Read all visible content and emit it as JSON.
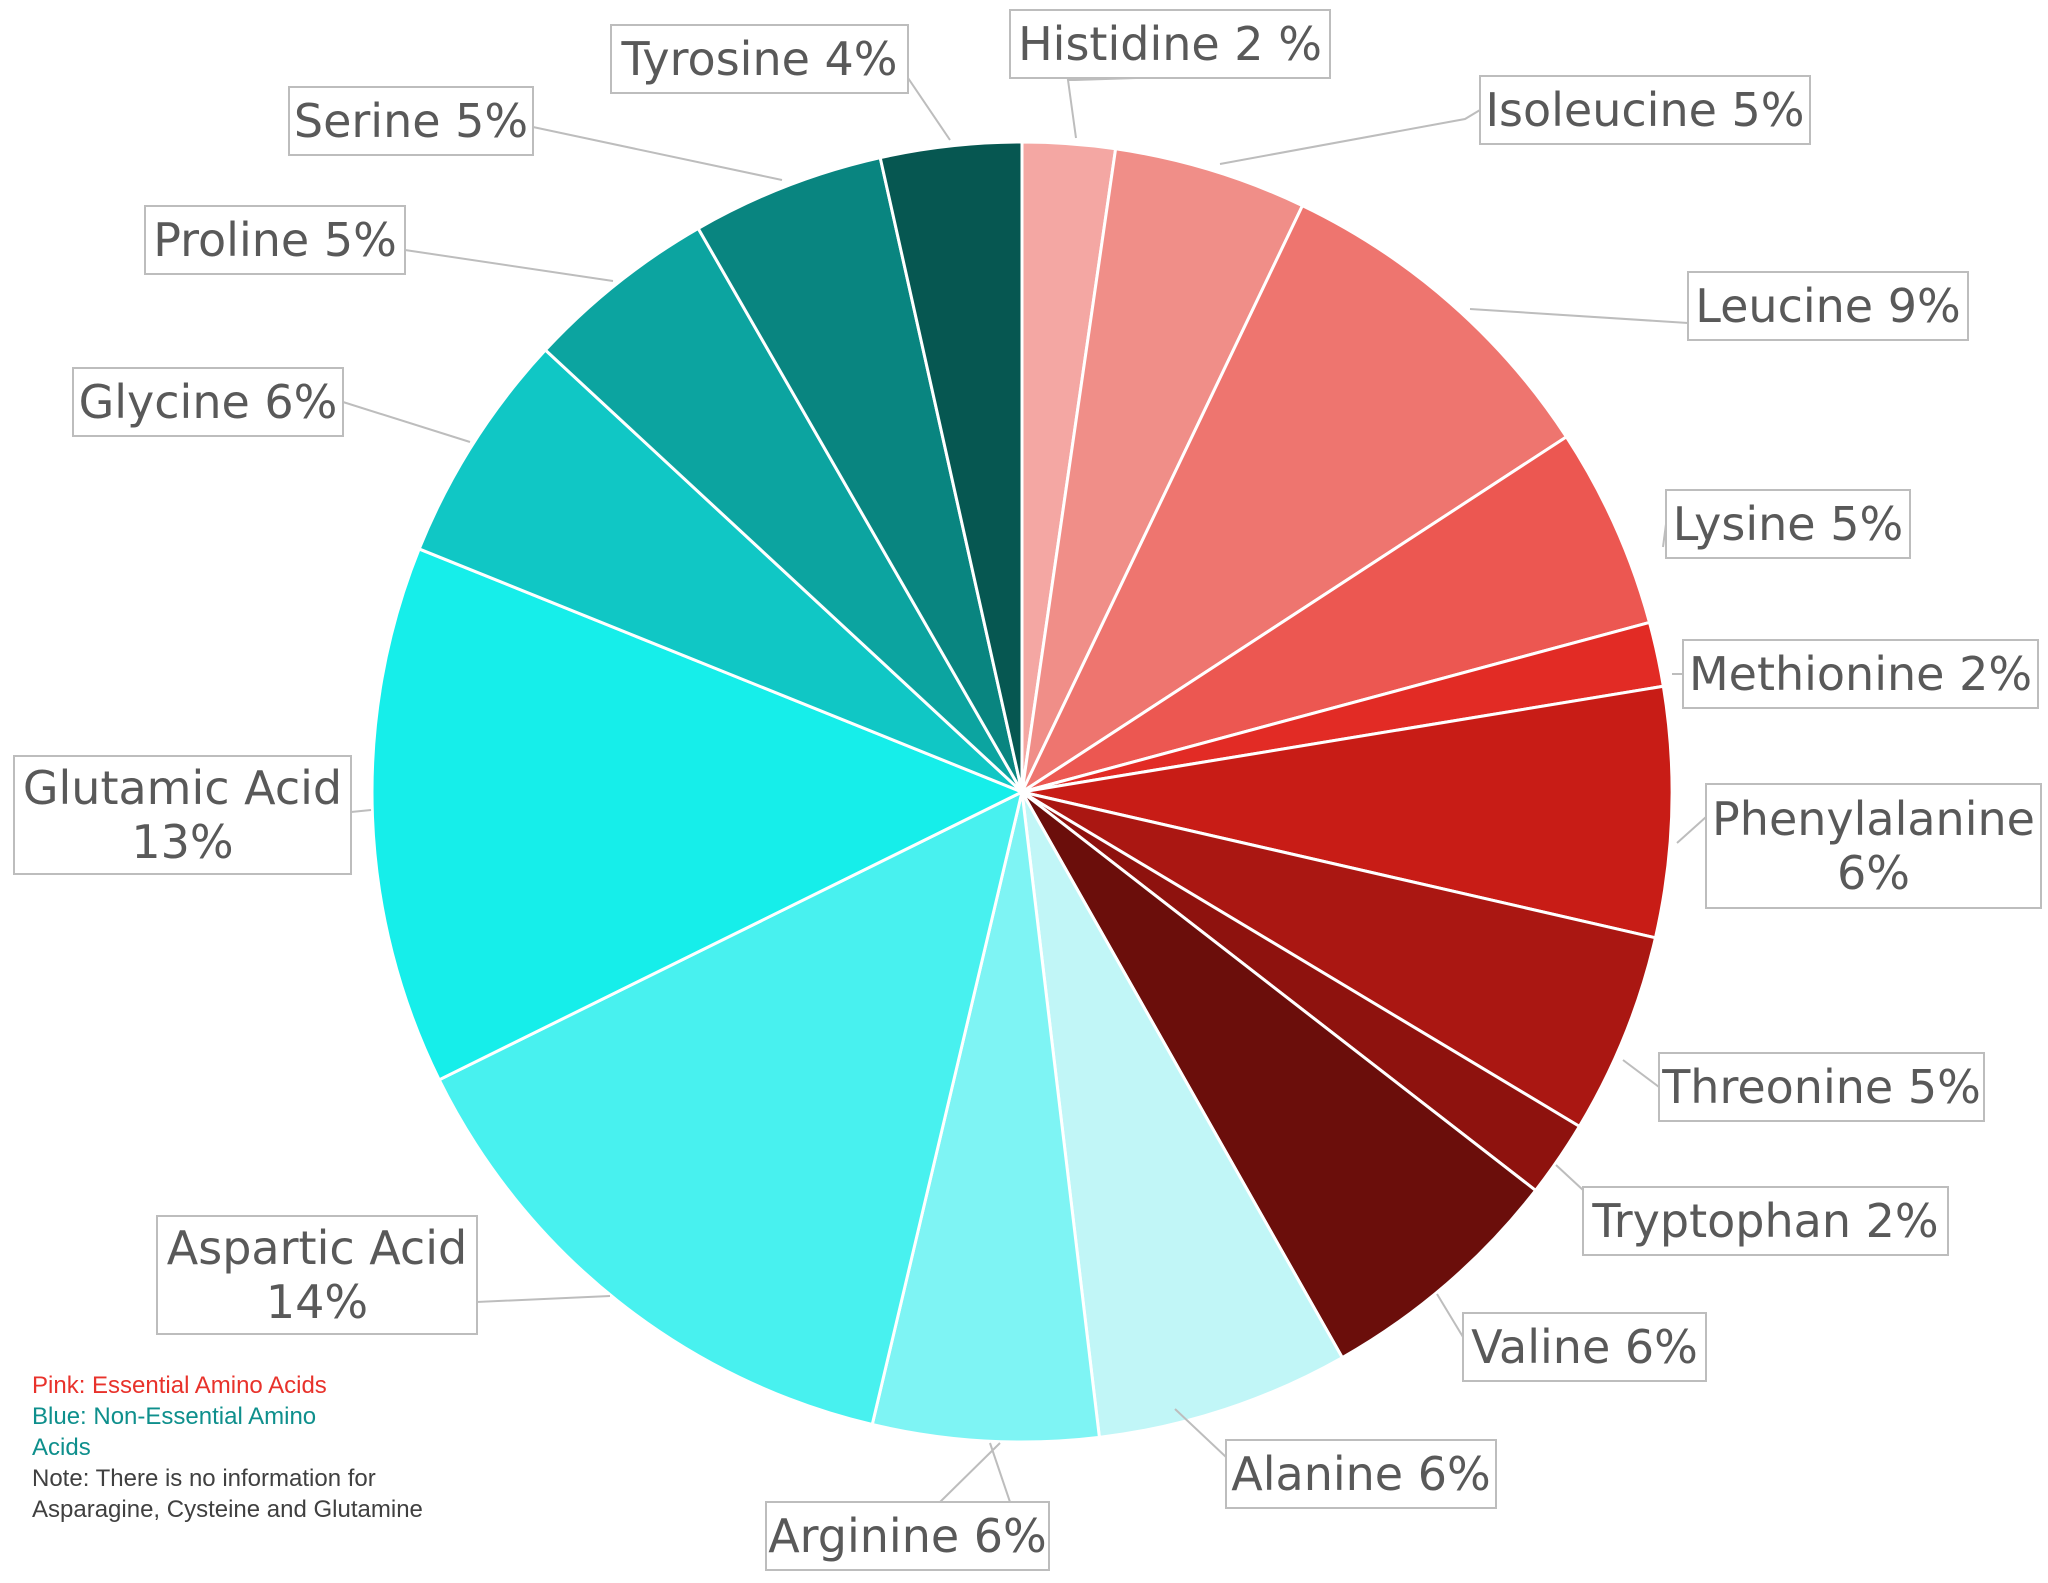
{
  "chart_data": {
    "type": "pie",
    "title": "",
    "start_angle_deg": 0,
    "direction": "clockwise",
    "slices": [
      {
        "name": "Histidine",
        "label": "Histidine 2 %",
        "value": 2.3,
        "color": "#F4A7A3"
      },
      {
        "name": "Isoleucine",
        "label": "Isoleucine 5%",
        "value": 4.8,
        "color": "#F08E88"
      },
      {
        "name": "Leucine",
        "label": "Leucine 9%",
        "value": 8.7,
        "color": "#EE756F"
      },
      {
        "name": "Lysine",
        "label": "Lysine 5%",
        "value": 5.0,
        "color": "#EC5751"
      },
      {
        "name": "Methionine",
        "label": "Methionine 2%",
        "value": 1.6,
        "color": "#E22B25"
      },
      {
        "name": "Phenylalanine",
        "label": "Phenylalanine 6%",
        "value": 6.2,
        "color": "#C81C16"
      },
      {
        "name": "Threonine",
        "label": "Threonine 5%",
        "value": 5.0,
        "color": "#AA1712"
      },
      {
        "name": "Tryptophan",
        "label": "Tryptophan 2%",
        "value": 1.9,
        "color": "#8E120E"
      },
      {
        "name": "Valine",
        "label": "Valine 6%",
        "value": 6.3,
        "color": "#6B0E0B"
      },
      {
        "name": "Alanine",
        "label": "Alanine 6%",
        "value": 6.3,
        "color": "#C1F6F7"
      },
      {
        "name": "Arginine",
        "label": "Arginine 6%",
        "value": 5.6,
        "color": "#7EF4F4"
      },
      {
        "name": "Aspartic Acid",
        "label": "Aspartic Acid 14%",
        "value": 14.0,
        "color": "#48F1EF"
      },
      {
        "name": "Glutamic Acid",
        "label": "Glutamic Acid 13%",
        "value": 13.4,
        "color": "#16EEEA"
      },
      {
        "name": "Glycine",
        "label": "Glycine 6%",
        "value": 5.8,
        "color": "#10C7C5"
      },
      {
        "name": "Proline",
        "label": "Proline 5%",
        "value": 4.8,
        "color": "#0CA4A0"
      },
      {
        "name": "Serine",
        "label": "Serine 5%",
        "value": 4.8,
        "color": "#098580"
      },
      {
        "name": "Tyrosine",
        "label": "Tyrosine 4%",
        "value": 3.5,
        "color": "#065751"
      }
    ],
    "labels": [
      {
        "slice": "Histidine",
        "lines": [
          "Histidine 2 %"
        ]
      },
      {
        "slice": "Isoleucine",
        "lines": [
          "Isoleucine 5%"
        ]
      },
      {
        "slice": "Leucine",
        "lines": [
          "Leucine 9%"
        ]
      },
      {
        "slice": "Lysine",
        "lines": [
          "Lysine 5%"
        ]
      },
      {
        "slice": "Methionine",
        "lines": [
          "Methionine 2%"
        ]
      },
      {
        "slice": "Phenylalanine",
        "lines": [
          "Phenylalanine",
          "6%"
        ]
      },
      {
        "slice": "Threonine",
        "lines": [
          "Threonine 5%"
        ]
      },
      {
        "slice": "Tryptophan",
        "lines": [
          "Tryptophan 2%"
        ]
      },
      {
        "slice": "Valine",
        "lines": [
          "Valine 6%"
        ]
      },
      {
        "slice": "Alanine",
        "lines": [
          "Alanine 6%"
        ]
      },
      {
        "slice": "Arginine",
        "lines": [
          "Arginine 6%"
        ]
      },
      {
        "slice": "Aspartic Acid",
        "lines": [
          "Aspartic Acid",
          "14%"
        ]
      },
      {
        "slice": "Glutamic Acid",
        "lines": [
          "Glutamic Acid",
          "13%"
        ]
      },
      {
        "slice": "Glycine",
        "lines": [
          "Glycine 6%"
        ]
      },
      {
        "slice": "Proline",
        "lines": [
          "Proline 5%"
        ]
      },
      {
        "slice": "Serine",
        "lines": [
          "Serine 5%"
        ]
      },
      {
        "slice": "Tyrosine",
        "lines": [
          "Tyrosine 4%"
        ]
      }
    ],
    "legend_placement": "bottom-left",
    "notes": [
      {
        "text": "Pink: Essential Amino Acids",
        "color": "#E8322B"
      },
      {
        "text": "Blue: Non-Essential Amino",
        "color": "#0E8F8C"
      },
      {
        "text": "Acids",
        "color": "#0E8F8C"
      },
      {
        "text": "Note: There is no information for",
        "color": "#404040"
      },
      {
        "text": "Asparagine, Cysteine and Glutamine",
        "color": "#404040"
      }
    ]
  }
}
